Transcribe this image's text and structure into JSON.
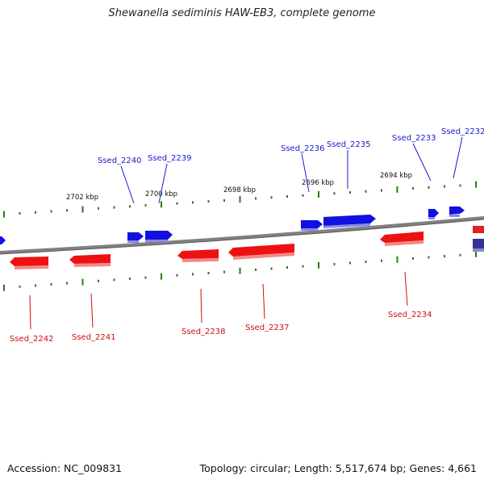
{
  "title": "Shewanella sediminis HAW-EB3, complete genome",
  "footer": {
    "accession": "Accession: NC_009831",
    "summary": "Topology: circular; Length: 5,517,674 bp; Genes: 4,661"
  },
  "colors": {
    "forward_gene": "#1010e0",
    "reverse_gene": "#ee1111",
    "backbone": "#808080",
    "tick": "#2a7a1a",
    "forward_label": "#1a1ad0",
    "reverse_label": "#cc1010"
  },
  "scale_labels": [
    "2702 kbp",
    "2700 kbp",
    "2698 kbp",
    "2696 kbp",
    "2694 kbp"
  ],
  "genes_forward": [
    "Ssed_2240",
    "Ssed_2239",
    "Ssed_2236",
    "Ssed_2235",
    "Ssed_2233",
    "Ssed_2232"
  ],
  "genes_reverse": [
    "Ssed_2242",
    "Ssed_2241",
    "Ssed_2238",
    "Ssed_2237",
    "Ssed_2234"
  ]
}
